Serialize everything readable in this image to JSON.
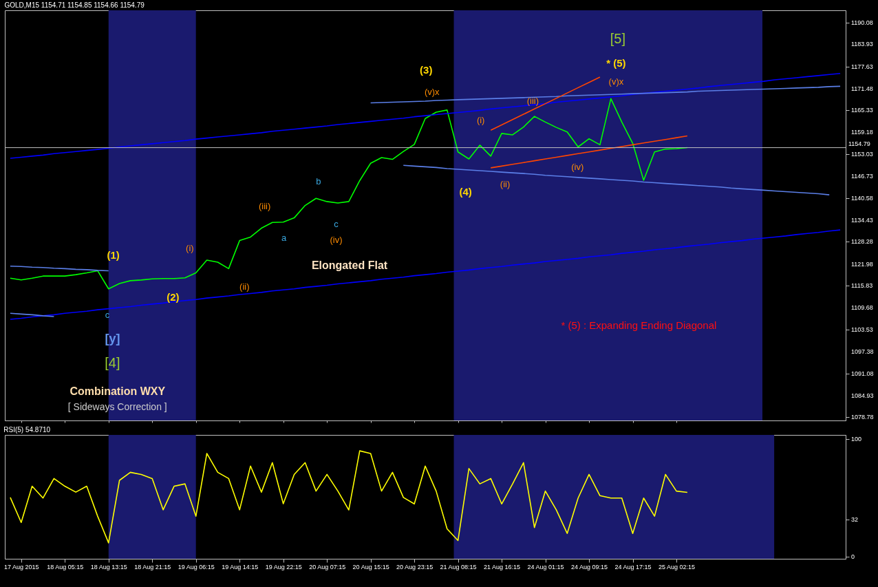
{
  "chart_data": [
    {
      "type": "line",
      "title": "GOLD,M15 1154.71 1154.85 1154.66 1154.79",
      "ylim": [
        1077.9,
        1193.5
      ],
      "categories": [
        null,
        "17 Aug 2015",
        null,
        null,
        null,
        "18 Aug 05:15",
        null,
        null,
        null,
        "18 Aug 13:15",
        null,
        null,
        null,
        "18 Aug 21:15",
        null,
        null,
        null,
        "19 Aug 06:15",
        null,
        null,
        null,
        "19 Aug 14:15",
        null,
        null,
        null,
        "19 Aug 22:15",
        null,
        null,
        null,
        "20 Aug 07:15",
        null,
        null,
        null,
        "20 Aug 15:15",
        null,
        null,
        null,
        "20 Aug 23:15",
        null,
        null,
        null,
        "21 Aug 08:15",
        null,
        null,
        null,
        "21 Aug 16:15",
        null,
        null,
        null,
        "24 Aug 01:15",
        null,
        null,
        null,
        "24 Aug 09:15",
        null,
        null,
        null,
        "24 Aug 17:15",
        null,
        null,
        null,
        "25 Aug 02:15",
        null,
        null,
        null,
        null,
        null,
        null,
        null,
        null,
        null,
        null,
        null,
        null,
        null,
        null,
        null
      ],
      "yticks": [
        1190.08,
        1183.93,
        1177.63,
        1171.48,
        1165.33,
        1159.18,
        1153.03,
        1146.73,
        1140.58,
        1134.43,
        1128.28,
        1121.98,
        1115.83,
        1109.68,
        1103.53,
        1097.38,
        1091.08,
        1084.93,
        1078.78
      ],
      "tick_labels": "y",
      "bands": [
        {
          "axis": "x",
          "from": "18 Aug 13:15",
          "to": "19 Aug 06:15",
          "color": "#1a1a6e"
        }
      ],
      "ref_lines": [
        {
          "axis": "y",
          "value": 1154.79,
          "label": "1154.79",
          "color": "#c0c0c0"
        }
      ],
      "series": [
        {
          "color": "#00ff00",
          "values": [
            1118.0,
            1117.5,
            1118.0,
            1118.6,
            1118.6,
            1118.6,
            1119.0,
            1119.5,
            1120.1,
            1115.0,
            1116.5,
            1117.3,
            1117.5,
            1117.8,
            1117.9,
            1117.9,
            1118.1,
            1119.5,
            1123.1,
            1122.5,
            1120.7,
            1128.6,
            1129.6,
            1132.1,
            1133.7,
            1133.8,
            1135.0,
            1138.5,
            1140.5,
            1139.6,
            1139.2,
            1139.6,
            1145.5,
            1150.4,
            1152.0,
            1151.5,
            1153.7,
            1155.7,
            1163.0,
            1164.8,
            1165.4,
            1153.6,
            1151.6,
            1155.5,
            1152.4,
            1158.8,
            1158.4,
            1160.6,
            1163.6,
            1162.0,
            1160.5,
            1159.2,
            1155.0,
            1157.3,
            1155.6,
            1168.6,
            1162.0,
            1156.0,
            1145.6,
            1153.6,
            1154.4,
            1154.5,
            1154.8,
            null,
            null,
            null,
            null,
            null,
            null,
            null,
            null,
            null,
            null,
            null,
            null,
            null,
            null
          ]
        },
        {
          "type": "line",
          "color": "#0000ff",
          "values": [
            1151.8,
            1152.1,
            1152.4,
            1152.7,
            1153.1,
            1153.4,
            1153.7,
            1154.0,
            1154.3,
            1154.6,
            1155.0,
            1155.3,
            1155.6,
            1155.9,
            1156.2,
            1156.5,
            1156.8,
            1157.2,
            1157.5,
            1157.8,
            1158.1,
            1158.4,
            1158.7,
            1159.0,
            1159.4,
            1159.7,
            1160.0,
            1160.3,
            1160.6,
            1160.9,
            1161.3,
            1161.6,
            1161.9,
            1162.2,
            1162.5,
            1162.8,
            1163.1,
            1163.5,
            1163.8,
            1164.1,
            1164.4,
            1164.7,
            1165.0,
            1165.3,
            1165.7,
            1166.0,
            1166.3,
            1166.6,
            1166.9,
            1167.2,
            1167.6,
            1167.9,
            1168.2,
            1168.5,
            1168.8,
            1169.1,
            1169.4,
            1169.8,
            1170.1,
            1170.4,
            1170.7,
            1171.0,
            1171.3,
            1171.6,
            1172.0,
            1172.3,
            1172.6,
            1172.9,
            1173.2,
            1173.5,
            1173.9,
            1174.2,
            1174.5,
            1174.8,
            1175.1,
            1175.4,
            1175.7
          ]
        },
        {
          "type": "line",
          "color": "#5b7fe8",
          "values": [
            null,
            null,
            null,
            null,
            null,
            null,
            null,
            null,
            null,
            null,
            null,
            null,
            null,
            null,
            null,
            null,
            null,
            null,
            null,
            null,
            null,
            null,
            null,
            null,
            null,
            null,
            null,
            null,
            null,
            null,
            null,
            null,
            null,
            1167.4,
            1167.5,
            1167.6,
            1167.7,
            1167.8,
            1167.9,
            1168.1,
            1168.2,
            1168.3,
            1168.4,
            1168.5,
            1168.6,
            1168.7,
            1168.8,
            1168.9,
            1169.0,
            1169.1,
            1169.2,
            1169.4,
            1169.5,
            1169.6,
            1169.7,
            1169.8,
            1169.9,
            1170.0,
            1170.1,
            1170.2,
            1170.3,
            1170.4,
            1170.5,
            1170.7,
            1170.8,
            1170.9,
            1171.0,
            1171.1,
            1171.2,
            1171.3,
            1171.4,
            1171.5,
            1171.6,
            1171.7,
            1171.8,
            1172.0,
            1172.1
          ]
        },
        {
          "type": "line",
          "color": "#5b7fe8",
          "values": [
            null,
            null,
            null,
            null,
            null,
            null,
            null,
            null,
            null,
            null,
            null,
            null,
            null,
            null,
            null,
            null,
            null,
            null,
            null,
            null,
            null,
            null,
            null,
            null,
            null,
            null,
            null,
            null,
            null,
            null,
            null,
            null,
            null,
            null,
            null,
            null,
            1149.8,
            1149.6,
            1149.4,
            1149.2,
            1148.9,
            1148.7,
            1148.5,
            1148.3,
            1148.1,
            1147.9,
            1147.7,
            1147.5,
            1147.3,
            1147.0,
            1146.8,
            1146.6,
            1146.4,
            1146.2,
            1146.0,
            1145.8,
            1145.6,
            1145.4,
            1145.1,
            1144.9,
            1144.7,
            1144.5,
            1144.3,
            1144.1,
            1143.9,
            1143.7,
            1143.4,
            1143.2,
            1143.0,
            1142.8,
            1142.6,
            1142.4,
            1142.2,
            1142.0,
            1141.8,
            1141.5,
            null
          ]
        },
        {
          "type": "line",
          "color": "#0000ff",
          "values": [
            1106.4,
            1106.7,
            1107.1,
            1107.4,
            1107.7,
            1108.1,
            1108.4,
            1108.7,
            1109.1,
            1109.4,
            1109.7,
            1110.0,
            1110.4,
            1110.7,
            1111.0,
            1111.4,
            1111.7,
            1112.0,
            1112.4,
            1112.7,
            1113.0,
            1113.4,
            1113.7,
            1114.0,
            1114.4,
            1114.7,
            1115.0,
            1115.4,
            1115.7,
            1116.0,
            1116.4,
            1116.7,
            1117.0,
            1117.3,
            1117.7,
            1118.0,
            1118.3,
            1118.7,
            1119.0,
            1119.3,
            1119.7,
            1120.0,
            1120.3,
            1120.7,
            1121.0,
            1121.3,
            1121.7,
            1122.0,
            1122.3,
            1122.7,
            1123.0,
            1123.3,
            1123.6,
            1124.0,
            1124.3,
            1124.6,
            1125.0,
            1125.3,
            1125.6,
            1126.0,
            1126.3,
            1126.6,
            1127.0,
            1127.3,
            1127.6,
            1128.0,
            1128.3,
            1128.6,
            1129.0,
            1129.3,
            1129.6,
            1129.9,
            1130.3,
            1130.6,
            1130.9,
            1131.3,
            1131.6
          ]
        },
        {
          "type": "line",
          "color": "#5b7fe8",
          "values": [
            1121.4,
            1121.3,
            1121.1,
            1121.0,
            1120.8,
            1120.7,
            1120.5,
            1120.4,
            1120.2,
            1120.1,
            null,
            null,
            null,
            null,
            null,
            null,
            null,
            null,
            null,
            null,
            null,
            null,
            null,
            null,
            null,
            null,
            null,
            null,
            null,
            null,
            null,
            null,
            null,
            null,
            null,
            null,
            null,
            null,
            null,
            null,
            null,
            null,
            null,
            null,
            null,
            null,
            null,
            null,
            null,
            null,
            null,
            null,
            null,
            null,
            null,
            null,
            null,
            null,
            null,
            null,
            null,
            null,
            null,
            null,
            null,
            null,
            null,
            null,
            null,
            null,
            null,
            null,
            null,
            null,
            null,
            null,
            null
          ]
        },
        {
          "type": "line",
          "color": "#5b7fe8",
          "values": [
            1108.1,
            1107.9,
            1107.7,
            1107.4,
            1107.2,
            null,
            null,
            null,
            null,
            null,
            null,
            null,
            null,
            null,
            null,
            null,
            null,
            null,
            null,
            null,
            null,
            null,
            null,
            null,
            null,
            null,
            null,
            null,
            null,
            null,
            null,
            null,
            null,
            null,
            null,
            null,
            null,
            null,
            null,
            null,
            null,
            null,
            null,
            null,
            null,
            null,
            null,
            null,
            null,
            null,
            null,
            null,
            null,
            null,
            null,
            null,
            null,
            null,
            null,
            null,
            null,
            null,
            null,
            null,
            null,
            null,
            null,
            null,
            null,
            null,
            null,
            null,
            null,
            null,
            null,
            null,
            null
          ]
        },
        {
          "type": "line",
          "color": "#ff4500",
          "values": [
            null,
            null,
            null,
            null,
            null,
            null,
            null,
            null,
            null,
            null,
            null,
            null,
            null,
            null,
            null,
            null,
            null,
            null,
            null,
            null,
            null,
            null,
            null,
            null,
            null,
            null,
            null,
            null,
            null,
            null,
            null,
            null,
            null,
            null,
            null,
            null,
            null,
            null,
            null,
            null,
            null,
            null,
            null,
            null,
            1159.7,
            1161.2,
            1162.7,
            1164.2,
            1165.7,
            1167.2,
            1168.7,
            1170.2,
            1171.7,
            1173.2,
            1174.7,
            null,
            null,
            null,
            null,
            null,
            null,
            null,
            null,
            null,
            null,
            null,
            null,
            null,
            null,
            null,
            null,
            null,
            null,
            null,
            null,
            null,
            null
          ]
        },
        {
          "type": "line",
          "color": "#ff4500",
          "values": [
            null,
            null,
            null,
            null,
            null,
            null,
            null,
            null,
            null,
            null,
            null,
            null,
            null,
            null,
            null,
            null,
            null,
            null,
            null,
            null,
            null,
            null,
            null,
            null,
            null,
            null,
            null,
            null,
            null,
            null,
            null,
            null,
            null,
            null,
            null,
            null,
            null,
            null,
            null,
            null,
            null,
            null,
            null,
            null,
            1149.1,
            1149.6,
            1150.1,
            1150.6,
            1151.1,
            1151.6,
            1152.1,
            1152.6,
            1153.1,
            1153.6,
            1154.1,
            1154.6,
            1155.1,
            1155.6,
            1156.1,
            1156.6,
            1157.1,
            1157.6,
            1158.1,
            null,
            null,
            null,
            null,
            null,
            null,
            null,
            null,
            null,
            null,
            null,
            null,
            null,
            null
          ]
        }
      ],
      "annotations": [
        "[5]",
        "* (5)",
        "(v)x",
        "(3)",
        "(v)x",
        "(iii)",
        "(i)",
        "(iv)",
        "(ii)",
        "(4)",
        "b",
        "(iii)",
        "a",
        "c",
        "(iv)",
        "(i)",
        "(1)",
        "Elongated Flat",
        "(2)",
        "(ii)",
        "c",
        "[y]",
        "[4]",
        "Combination WXY",
        "[ Sideways Correction ]",
        "* (5) : Expanding Ending Diagonal"
      ]
    },
    {
      "type": "line",
      "title": "RSI(5) 54.8710",
      "ylim": [
        -1.5,
        103.5
      ],
      "yticks": [
        0,
        32,
        100
      ],
      "categories": [
        null,
        "17 Aug 2015",
        null,
        null,
        null,
        "18 Aug 05:15",
        null,
        null,
        null,
        "18 Aug 13:15",
        null,
        null,
        null,
        "18 Aug 21:15",
        null,
        null,
        null,
        "19 Aug 06:15",
        null,
        null,
        null,
        "19 Aug 14:15",
        null,
        null,
        null,
        "19 Aug 22:15",
        null,
        null,
        null,
        "20 Aug 07:15",
        null,
        null,
        null,
        "20 Aug 15:15",
        null,
        null,
        null,
        "20 Aug 23:15",
        null,
        null,
        null,
        "21 Aug 08:15",
        null,
        null,
        null,
        "21 Aug 16:15",
        null,
        null,
        null,
        "24 Aug 01:15",
        null,
        null,
        null,
        "24 Aug 09:15",
        null,
        null,
        null,
        "24 Aug 17:15",
        null,
        null,
        null,
        "25 Aug 02:15",
        null,
        null,
        null,
        null,
        null,
        null,
        null,
        null,
        null,
        null,
        null,
        null,
        null,
        null,
        null
      ],
      "bands": [
        {
          "axis": "x",
          "from": "18 Aug 13:15",
          "to": "19 Aug 06:15",
          "color": "#1a1a6e"
        }
      ],
      "series": [
        {
          "color": "#ffff00",
          "values": [
            50.5,
            29.3,
            60,
            50,
            66.5,
            60,
            55,
            60,
            34.6,
            12,
            65,
            71.8,
            70,
            66.5,
            40,
            60,
            62,
            34.6,
            87.8,
            71.8,
            66.5,
            40,
            77.1,
            55,
            80,
            45.2,
            70,
            80,
            55.9,
            70,
            55.9,
            39.9,
            90,
            87.8,
            55.9,
            71.8,
            50.5,
            45,
            77.1,
            55.9,
            23.9,
            14,
            75,
            62,
            66.5,
            45,
            62,
            80,
            25,
            55.9,
            40,
            20,
            50,
            70,
            52,
            50,
            50,
            20,
            50,
            34.6,
            70,
            55.9,
            54.8,
            null,
            null,
            null,
            null,
            null,
            null,
            null,
            null,
            null,
            null,
            null,
            null,
            null,
            null
          ]
        }
      ]
    }
  ]
}
